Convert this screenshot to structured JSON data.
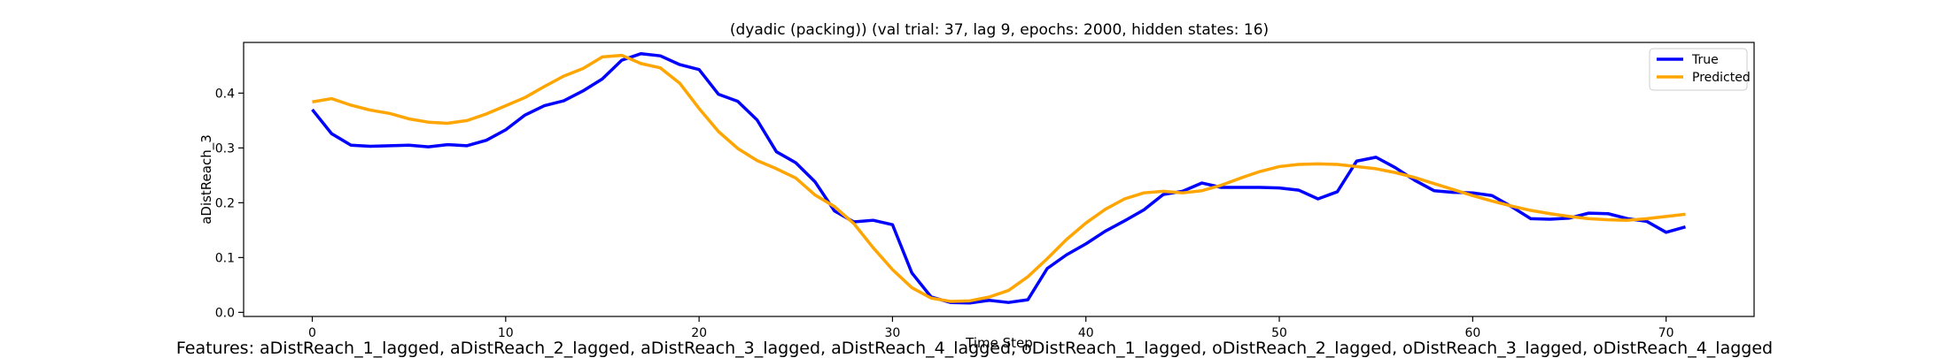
{
  "chart_data": {
    "type": "line",
    "title": "(dyadic (packing)) (val trial: 37, lag 9, epochs: 2000, hidden states: 16)",
    "xlabel": "Time Step",
    "ylabel": "aDistReach_3",
    "xlim": [
      -3.55,
      74.55
    ],
    "ylim": [
      -0.0075,
      0.4925
    ],
    "xticks": [
      0,
      10,
      20,
      30,
      40,
      50,
      60,
      70
    ],
    "yticks": [
      0.0,
      0.1,
      0.2,
      0.3,
      0.4
    ],
    "grid": false,
    "legend": "top-right",
    "x": [
      0,
      1,
      2,
      3,
      4,
      5,
      6,
      7,
      8,
      9,
      10,
      11,
      12,
      13,
      14,
      15,
      16,
      17,
      18,
      19,
      20,
      21,
      22,
      23,
      24,
      25,
      26,
      27,
      28,
      29,
      30,
      31,
      32,
      33,
      34,
      35,
      36,
      37,
      38,
      39,
      40,
      41,
      42,
      43,
      44,
      45,
      46,
      47,
      48,
      49,
      50,
      51,
      52,
      53,
      54,
      55,
      56,
      57,
      58,
      59,
      60,
      61,
      62,
      63,
      64,
      65,
      66,
      67,
      68,
      69,
      70,
      71
    ],
    "series": [
      {
        "name": "True",
        "color": "#0000ff",
        "values": [
          0.37,
          0.326,
          0.305,
          0.303,
          0.304,
          0.305,
          0.302,
          0.306,
          0.304,
          0.314,
          0.333,
          0.36,
          0.377,
          0.386,
          0.404,
          0.426,
          0.46,
          0.472,
          0.468,
          0.452,
          0.443,
          0.398,
          0.385,
          0.351,
          0.293,
          0.273,
          0.238,
          0.185,
          0.165,
          0.168,
          0.16,
          0.072,
          0.028,
          0.018,
          0.017,
          0.022,
          0.018,
          0.023,
          0.08,
          0.105,
          0.125,
          0.148,
          0.167,
          0.187,
          0.215,
          0.221,
          0.236,
          0.228,
          0.228,
          0.228,
          0.227,
          0.223,
          0.207,
          0.22,
          0.276,
          0.283,
          0.264,
          0.241,
          0.222,
          0.219,
          0.218,
          0.213,
          0.193,
          0.171,
          0.17,
          0.172,
          0.181,
          0.18,
          0.171,
          0.166,
          0.146,
          0.156
        ]
      },
      {
        "name": "Predicted",
        "color": "#ffa500",
        "values": [
          0.384,
          0.39,
          0.378,
          0.369,
          0.363,
          0.353,
          0.347,
          0.345,
          0.35,
          0.362,
          0.377,
          0.392,
          0.412,
          0.431,
          0.445,
          0.466,
          0.469,
          0.454,
          0.446,
          0.418,
          0.372,
          0.33,
          0.299,
          0.277,
          0.262,
          0.245,
          0.214,
          0.193,
          0.162,
          0.118,
          0.078,
          0.045,
          0.026,
          0.02,
          0.021,
          0.028,
          0.04,
          0.065,
          0.098,
          0.133,
          0.163,
          0.188,
          0.207,
          0.218,
          0.221,
          0.218,
          0.222,
          0.232,
          0.245,
          0.257,
          0.266,
          0.27,
          0.271,
          0.27,
          0.266,
          0.262,
          0.255,
          0.246,
          0.235,
          0.224,
          0.213,
          0.203,
          0.194,
          0.186,
          0.18,
          0.175,
          0.171,
          0.169,
          0.168,
          0.171,
          0.175,
          0.179
        ]
      }
    ]
  },
  "features_text": "Features: aDistReach_1_lagged, aDistReach_2_lagged, aDistReach_3_lagged, aDistReach_4_lagged, oDistReach_1_lagged, oDistReach_2_lagged, oDistReach_3_lagged, oDistReach_4_lagged"
}
